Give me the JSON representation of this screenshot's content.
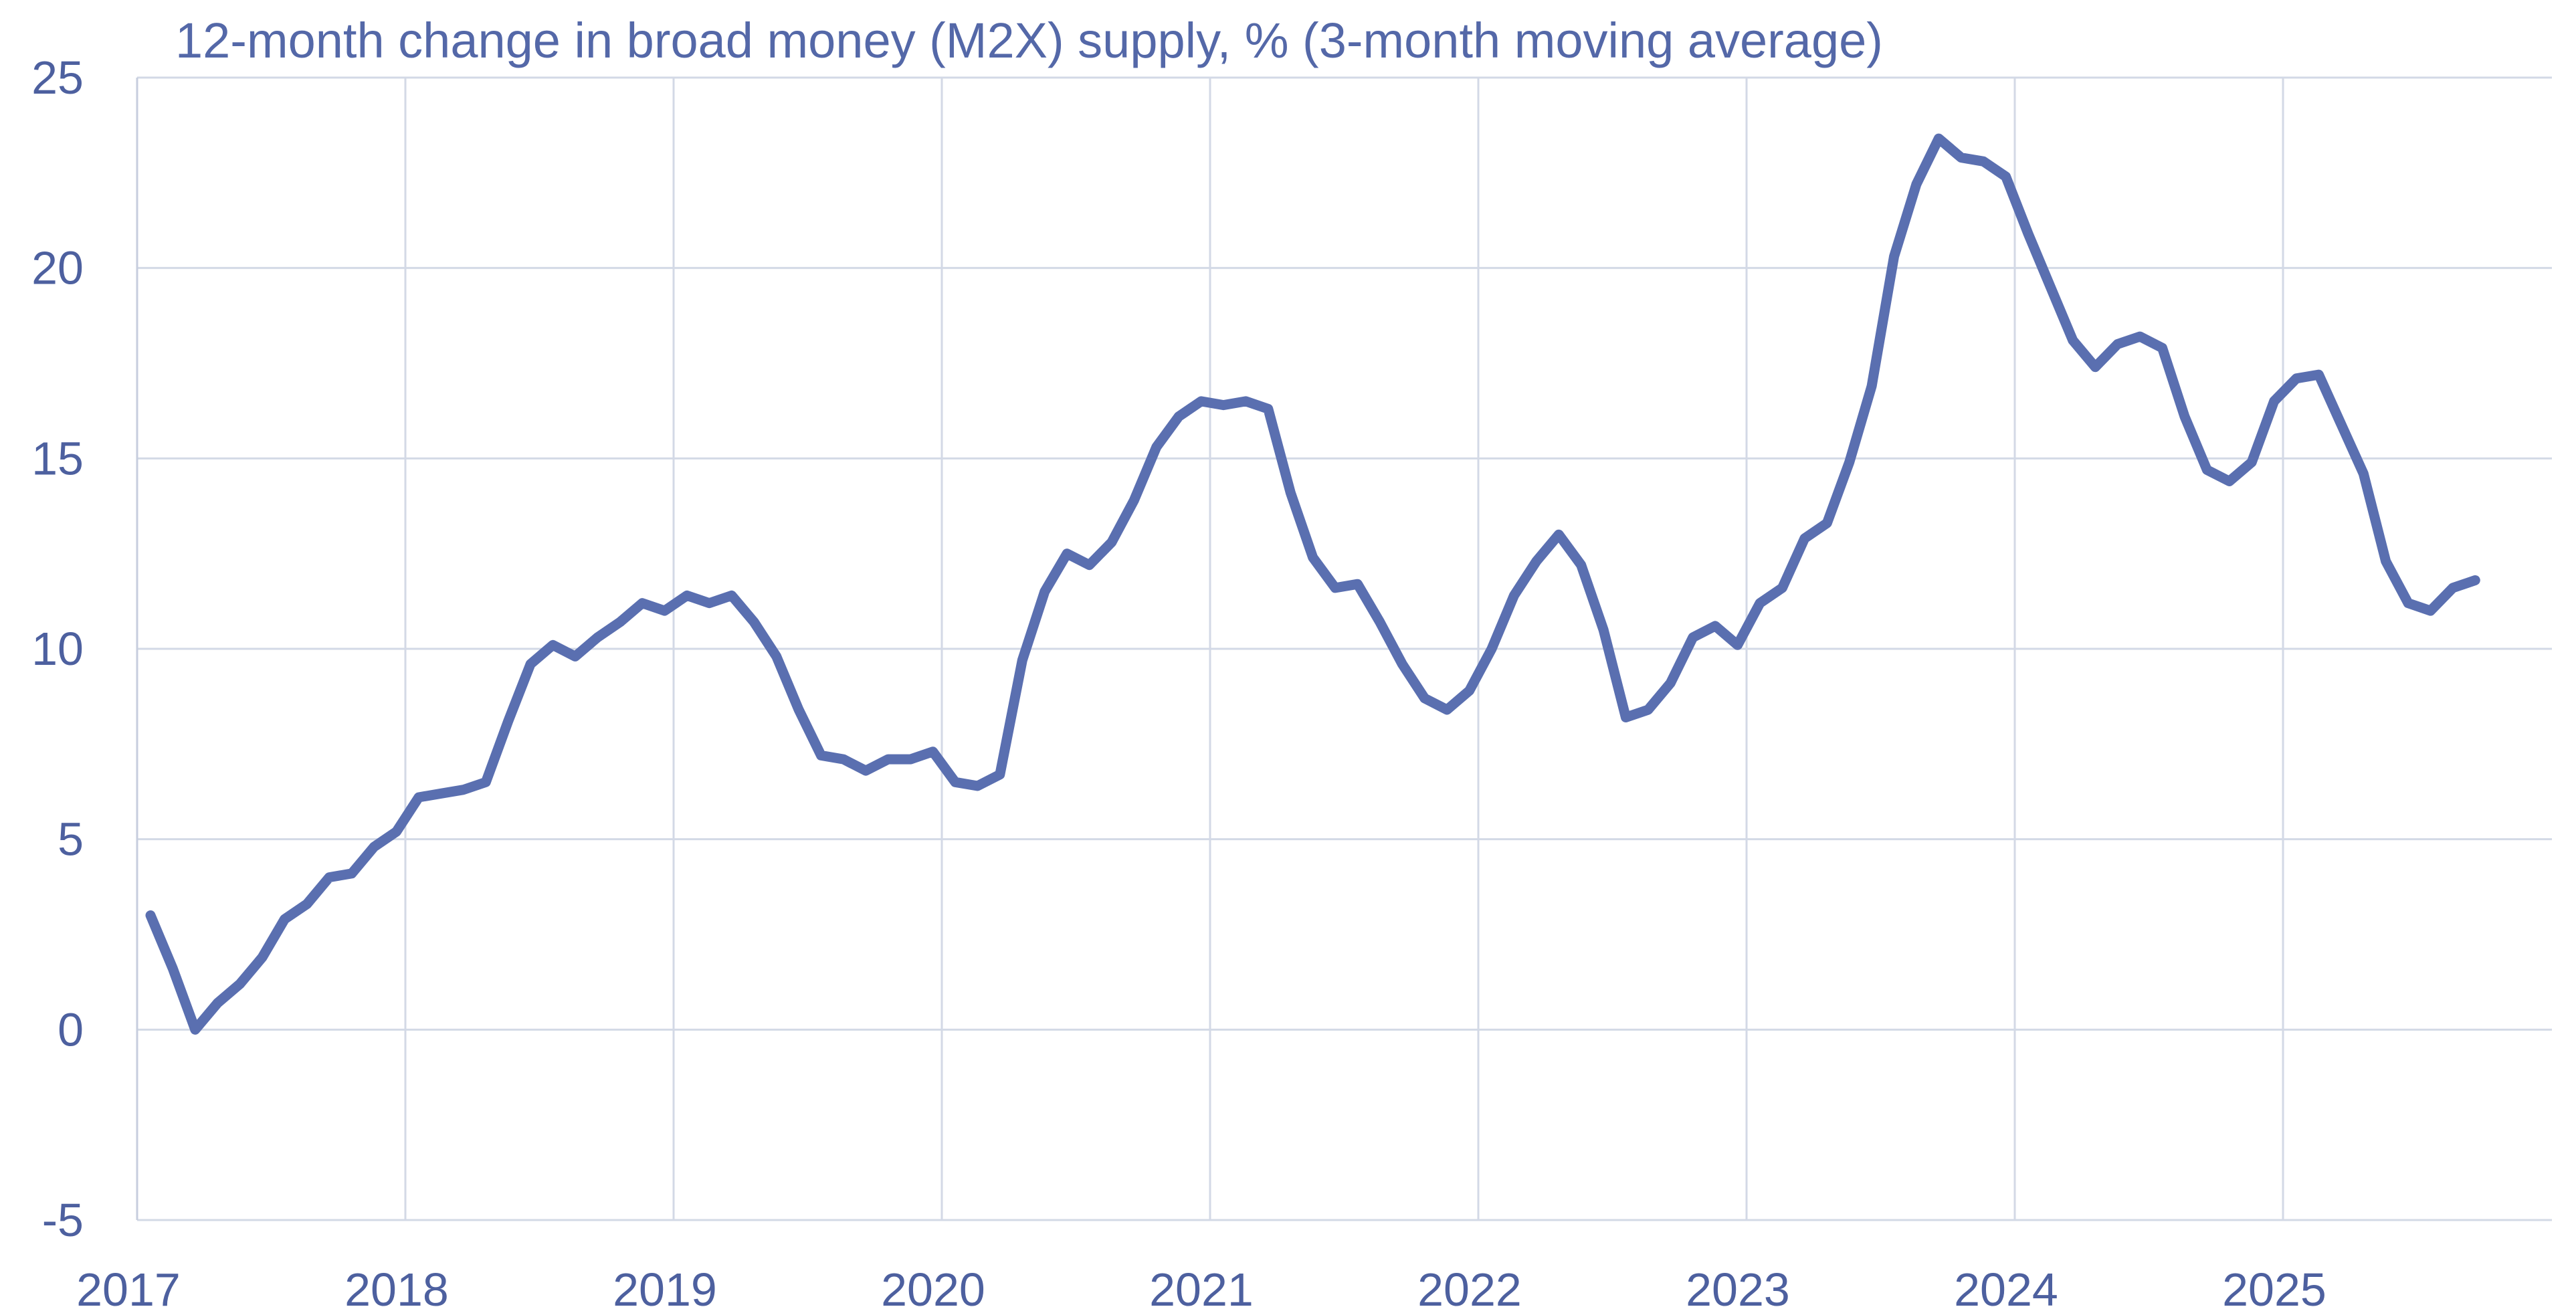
{
  "chart_data": {
    "type": "line",
    "title": "12-month change in broad money (M2X) supply, % (3-month moving average)",
    "xlabel": "",
    "ylabel": "",
    "ylim": [
      -5,
      25
    ],
    "yticks": [
      "25",
      "20",
      "15",
      "10",
      "5",
      "0",
      "-5"
    ],
    "xticks": [
      "2017",
      "2018",
      "2019",
      "2020",
      "2021",
      "2022",
      "2023",
      "2024",
      "2025"
    ],
    "grid": true,
    "legend": "none",
    "color": "#5a6fb0",
    "series": [
      {
        "values": [
          3.0,
          1.6,
          0.0,
          0.7,
          1.2,
          1.9,
          2.9,
          3.3,
          4.0,
          4.1,
          4.8,
          5.2,
          6.1,
          6.2,
          6.3,
          6.5,
          8.1,
          9.6,
          10.1,
          9.8,
          10.3,
          10.7,
          11.2,
          11.0,
          11.4,
          11.2,
          11.4,
          10.7,
          9.8,
          8.4,
          7.2,
          7.1,
          6.8,
          7.1,
          7.1,
          7.3,
          6.5,
          6.4,
          6.7,
          9.7,
          11.5,
          12.5,
          12.2,
          12.8,
          13.9,
          15.3,
          16.1,
          16.5,
          16.4,
          16.5,
          16.3,
          14.1,
          12.4,
          11.6,
          11.7,
          10.7,
          9.6,
          8.7,
          8.4,
          8.9,
          10.0,
          11.4,
          12.3,
          13.0,
          12.2,
          10.5,
          8.2,
          8.4,
          9.1,
          10.3,
          10.6,
          10.1,
          11.2,
          11.6,
          12.9,
          13.3,
          14.9,
          16.9,
          20.3,
          22.2,
          23.4,
          22.9,
          22.8,
          22.4,
          20.9,
          19.5,
          18.1,
          17.4,
          18.0,
          18.2,
          17.9,
          16.1,
          14.7,
          14.4,
          14.9,
          16.5,
          17.1,
          17.2,
          15.9,
          14.6,
          12.3,
          11.2,
          11.0,
          11.6,
          11.8
        ]
      }
    ]
  }
}
